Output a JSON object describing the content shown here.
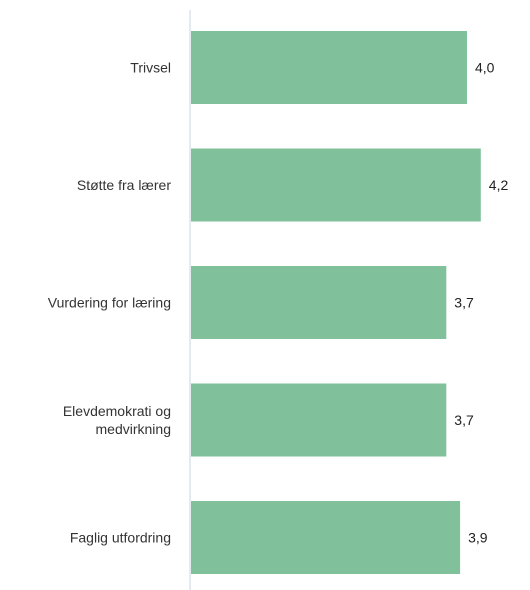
{
  "chart_data": {
    "type": "bar",
    "orientation": "horizontal",
    "categories": [
      "Trivsel",
      "Støtte fra lærer",
      "Vurdering for læring",
      "Elevdemokrati og medvirkning",
      "Faglig utfordring"
    ],
    "category_lines": [
      [
        "Trivsel"
      ],
      [
        "Støtte fra lærer"
      ],
      [
        "Vurdering for læring"
      ],
      [
        "Elevdemokrati og",
        "medvirkning"
      ],
      [
        "Faglig utfordring"
      ]
    ],
    "values": [
      4.0,
      4.2,
      3.7,
      3.7,
      3.9
    ],
    "value_labels": [
      "4,0",
      "4,2",
      "3,7",
      "3,7",
      "3,9"
    ],
    "xlim": [
      0,
      5
    ],
    "grid": false,
    "colors": {
      "bar": "#80c19c",
      "axis": "#c9d3e6",
      "text": "#333333"
    }
  }
}
